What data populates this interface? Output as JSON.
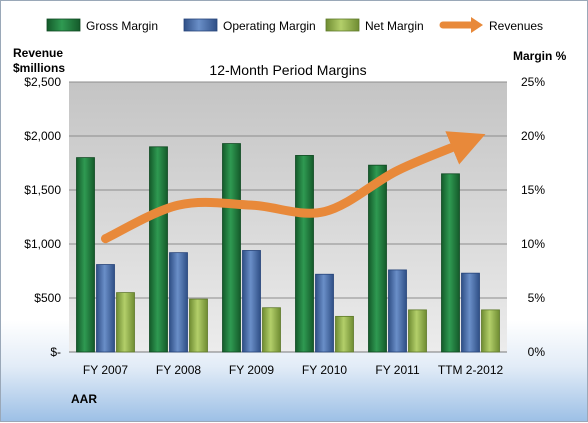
{
  "chart_data": {
    "type": "bar",
    "title": "12-Month Period Margins",
    "left_axis_label_line1": "Revenue",
    "left_axis_label_line2": "$millions",
    "right_axis_label": "Margin %",
    "company_label": "AAR",
    "categories": [
      "FY 2007",
      "FY 2008",
      "FY 2009",
      "FY 2010",
      "FY 2011",
      "TTM 2-2012"
    ],
    "left_axis": {
      "ylim": [
        0,
        2500
      ],
      "ticks": [
        0,
        500,
        1000,
        1500,
        2000,
        2500
      ],
      "tick_labels": [
        "$-",
        "$500",
        "$1,000",
        "$1,500",
        "$2,000",
        "$2,500"
      ]
    },
    "right_axis": {
      "ylim": [
        0,
        25
      ],
      "ticks": [
        0,
        5,
        10,
        15,
        20,
        25
      ],
      "tick_labels": [
        "0%",
        "5%",
        "10%",
        "15%",
        "20%",
        "25%"
      ]
    },
    "series": [
      {
        "name": "Gross Margin",
        "kind": "bar",
        "axis": "right",
        "color": "#1f7a3c",
        "values": [
          18.0,
          19.0,
          19.3,
          18.2,
          17.3,
          16.5
        ]
      },
      {
        "name": "Operating Margin",
        "kind": "bar",
        "axis": "right",
        "color": "#4a6fa8",
        "values": [
          8.1,
          9.2,
          9.4,
          7.2,
          7.6,
          7.3
        ]
      },
      {
        "name": "Net Margin",
        "kind": "bar",
        "axis": "right",
        "color": "#8fae4a",
        "values": [
          5.5,
          4.9,
          4.1,
          3.3,
          3.9,
          3.9
        ]
      },
      {
        "name": "Revenues",
        "kind": "line",
        "axis": "left",
        "color": "#e8893a",
        "values": [
          1050,
          1360,
          1360,
          1300,
          1680,
          1960
        ]
      }
    ],
    "grid": true,
    "legend_position": "top"
  }
}
